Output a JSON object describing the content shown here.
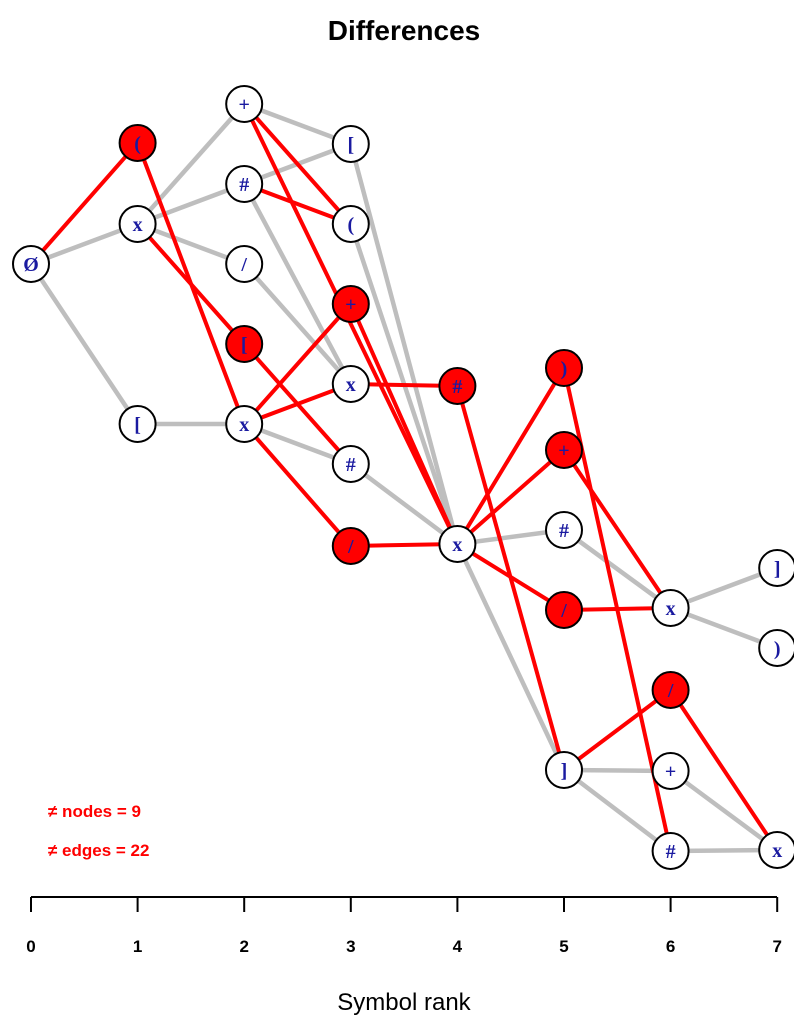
{
  "title": "Differences",
  "xlabel": "Symbol rank",
  "x_ticks": [
    "0",
    "1",
    "2",
    "3",
    "4",
    "5",
    "6",
    "7"
  ],
  "annotations": {
    "nodes_text": "≠ nodes = 9",
    "edges_text": "≠ edges = 22"
  },
  "colors": {
    "diff": "#ff0000",
    "common_edge": "#bebebe",
    "node_fill_common": "#ffffff",
    "node_fill_diff": "#ff0000",
    "label": "#1a1aa0"
  },
  "nodes": [
    {
      "id": "r0",
      "rank": 0,
      "label": "Ø",
      "diff": false
    },
    {
      "id": "a1",
      "rank": 1,
      "label": "(",
      "diff": true
    },
    {
      "id": "b1",
      "rank": 1,
      "label": "x",
      "diff": false
    },
    {
      "id": "c1",
      "rank": 1,
      "label": "[",
      "diff": false
    },
    {
      "id": "a2",
      "rank": 2,
      "label": "+",
      "diff": false
    },
    {
      "id": "b2",
      "rank": 2,
      "label": "#",
      "diff": false
    },
    {
      "id": "c2",
      "rank": 2,
      "label": "/",
      "diff": false
    },
    {
      "id": "d2",
      "rank": 2,
      "label": "[",
      "diff": true
    },
    {
      "id": "e2",
      "rank": 2,
      "label": "x",
      "diff": false
    },
    {
      "id": "a3",
      "rank": 3,
      "label": "[",
      "diff": false
    },
    {
      "id": "b3",
      "rank": 3,
      "label": "(",
      "diff": false
    },
    {
      "id": "c3",
      "rank": 3,
      "label": "+",
      "diff": true
    },
    {
      "id": "d3",
      "rank": 3,
      "label": "x",
      "diff": false
    },
    {
      "id": "e3",
      "rank": 3,
      "label": "#",
      "diff": false
    },
    {
      "id": "f3",
      "rank": 3,
      "label": "/",
      "diff": true
    },
    {
      "id": "a4",
      "rank": 4,
      "label": "#",
      "diff": true
    },
    {
      "id": "b4",
      "rank": 4,
      "label": "x",
      "diff": false
    },
    {
      "id": "a5",
      "rank": 5,
      "label": ")",
      "diff": true
    },
    {
      "id": "b5",
      "rank": 5,
      "label": "+",
      "diff": true
    },
    {
      "id": "c5",
      "rank": 5,
      "label": "#",
      "diff": false
    },
    {
      "id": "d5",
      "rank": 5,
      "label": "/",
      "diff": true
    },
    {
      "id": "e5",
      "rank": 5,
      "label": "]",
      "diff": false
    },
    {
      "id": "a6",
      "rank": 6,
      "label": "x",
      "diff": false
    },
    {
      "id": "b6",
      "rank": 6,
      "label": "/",
      "diff": true
    },
    {
      "id": "c6",
      "rank": 6,
      "label": "+",
      "diff": false
    },
    {
      "id": "d6",
      "rank": 6,
      "label": "#",
      "diff": false
    },
    {
      "id": "a7",
      "rank": 7,
      "label": "]",
      "diff": false
    },
    {
      "id": "b7",
      "rank": 7,
      "label": ")",
      "diff": false
    },
    {
      "id": "c7",
      "rank": 7,
      "label": "x",
      "diff": false
    }
  ],
  "edges": [
    {
      "from": "r0",
      "to": "b1",
      "diff": false
    },
    {
      "from": "r0",
      "to": "c1",
      "diff": false
    },
    {
      "from": "b1",
      "to": "a2",
      "diff": false
    },
    {
      "from": "b1",
      "to": "b2",
      "diff": false
    },
    {
      "from": "b1",
      "to": "c2",
      "diff": false
    },
    {
      "from": "c1",
      "to": "e2",
      "diff": false
    },
    {
      "from": "a2",
      "to": "a3",
      "diff": false
    },
    {
      "from": "b2",
      "to": "a3",
      "diff": false
    },
    {
      "from": "b2",
      "to": "d3",
      "diff": false
    },
    {
      "from": "c2",
      "to": "d3",
      "diff": false
    },
    {
      "from": "e2",
      "to": "e3",
      "diff": false
    },
    {
      "from": "a3",
      "to": "b4",
      "diff": false
    },
    {
      "from": "b3",
      "to": "b4",
      "diff": false
    },
    {
      "from": "e3",
      "to": "b4",
      "diff": false
    },
    {
      "from": "b4",
      "to": "c5",
      "diff": false
    },
    {
      "from": "b4",
      "to": "e5",
      "diff": false
    },
    {
      "from": "c5",
      "to": "a6",
      "diff": false
    },
    {
      "from": "a6",
      "to": "a7",
      "diff": false
    },
    {
      "from": "a6",
      "to": "b7",
      "diff": false
    },
    {
      "from": "e5",
      "to": "c6",
      "diff": false
    },
    {
      "from": "e5",
      "to": "d6",
      "diff": false
    },
    {
      "from": "c6",
      "to": "c7",
      "diff": false
    },
    {
      "from": "d6",
      "to": "c7",
      "diff": false
    },
    {
      "from": "r0",
      "to": "a1",
      "diff": true
    },
    {
      "from": "a1",
      "to": "e2",
      "diff": true
    },
    {
      "from": "b1",
      "to": "d2",
      "diff": true
    },
    {
      "from": "d2",
      "to": "e3",
      "diff": true
    },
    {
      "from": "a2",
      "to": "b3",
      "diff": true
    },
    {
      "from": "b2",
      "to": "b3",
      "diff": true
    },
    {
      "from": "a2",
      "to": "b4",
      "diff": true
    },
    {
      "from": "e2",
      "to": "c3",
      "diff": true
    },
    {
      "from": "e2",
      "to": "d3",
      "diff": true
    },
    {
      "from": "e2",
      "to": "f3",
      "diff": true
    },
    {
      "from": "c3",
      "to": "b4",
      "diff": true
    },
    {
      "from": "d3",
      "to": "a4",
      "diff": true
    },
    {
      "from": "f3",
      "to": "b4",
      "diff": true
    },
    {
      "from": "a4",
      "to": "e5",
      "diff": true
    },
    {
      "from": "b4",
      "to": "a5",
      "diff": true
    },
    {
      "from": "b4",
      "to": "b5",
      "diff": true
    },
    {
      "from": "b4",
      "to": "d5",
      "diff": true
    },
    {
      "from": "a5",
      "to": "d6",
      "diff": true
    },
    {
      "from": "b5",
      "to": "a6",
      "diff": true
    },
    {
      "from": "d5",
      "to": "a6",
      "diff": true
    },
    {
      "from": "e5",
      "to": "b6",
      "diff": true
    },
    {
      "from": "b6",
      "to": "c7",
      "diff": true
    }
  ]
}
